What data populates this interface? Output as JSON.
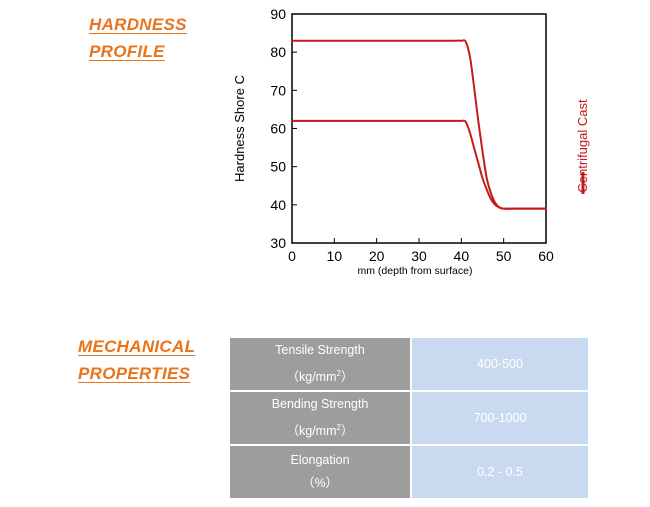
{
  "hardness_heading": [
    "HARDNESS",
    "PROFILE"
  ],
  "mechanical_heading": [
    "MECHANICAL",
    "PROPERTIES"
  ],
  "colors": {
    "accent": "#e8741c",
    "series": "#c41a1a",
    "table_label_bg": "#9d9d9d",
    "table_value_bg": "#c9daf0"
  },
  "chart_data": {
    "type": "line",
    "title": "",
    "xlabel": "mm (depth from surface)",
    "ylabel": "Hardness Shore C",
    "xlim": [
      0,
      60
    ],
    "ylim": [
      30,
      90
    ],
    "xticks": [
      0,
      10,
      20,
      30,
      40,
      50,
      60
    ],
    "yticks": [
      30,
      40,
      50,
      60,
      70,
      80,
      90
    ],
    "grid": false,
    "legend": {
      "position": "right, vertical",
      "entries": [
        "Centrifugal Cast"
      ]
    },
    "series": [
      {
        "name": "Centrifugal Cast",
        "x": [
          0,
          10,
          20,
          30,
          38,
          40,
          41,
          42,
          43,
          44,
          45,
          46,
          47,
          48,
          49,
          50,
          52,
          55,
          60
        ],
        "y": [
          83,
          83,
          83,
          83,
          83,
          83,
          82.8,
          79,
          71,
          62,
          54,
          47,
          43,
          40.5,
          39.3,
          39,
          39,
          39,
          39
        ]
      },
      {
        "name": "",
        "x": [
          0,
          10,
          20,
          30,
          38,
          40,
          41,
          42,
          43,
          44,
          45,
          46,
          47,
          48,
          49,
          50,
          52,
          55,
          60
        ],
        "y": [
          62,
          62,
          62,
          62,
          62,
          62,
          61.8,
          59,
          55,
          51,
          47,
          44,
          41.5,
          40,
          39.3,
          39,
          39,
          39,
          39
        ]
      }
    ]
  },
  "properties_table": [
    {
      "name": "Tensile Strength",
      "unit_pre": "（kg/mm",
      "unit_sup": "2",
      "unit_post": "）",
      "value": "400-500"
    },
    {
      "name": "Bending Strength",
      "unit_pre": "（kg/mm",
      "unit_sup": "2",
      "unit_post": "）",
      "value": "700-1000"
    },
    {
      "name": "Elongation",
      "unit_pre": "（%）",
      "unit_sup": "",
      "unit_post": "",
      "value": "0.2 - 0.5"
    }
  ]
}
